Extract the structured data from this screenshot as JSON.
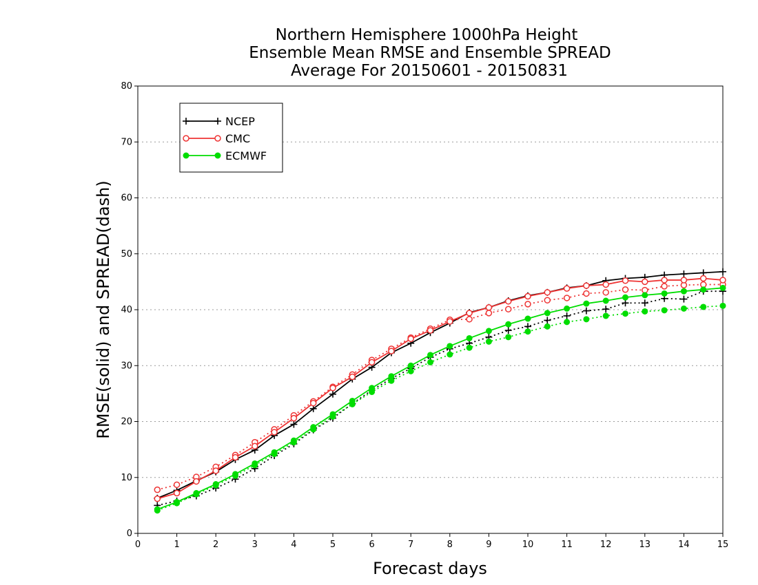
{
  "chart_data": {
    "type": "line",
    "title_lines": [
      "Northern Hemisphere 1000hPa Height",
      "Ensemble Mean RMSE and Ensemble SPREAD",
      "Average For 20150601 - 20150831"
    ],
    "xlabel": "Forecast days",
    "ylabel": "RMSE(solid) and SPREAD(dash)",
    "xlim": [
      0,
      15
    ],
    "ylim": [
      0,
      80
    ],
    "x_ticks": [
      "0",
      "1",
      "2",
      "3",
      "4",
      "5",
      "6",
      "7",
      "8",
      "9",
      "10",
      "11",
      "12",
      "13",
      "14",
      "15"
    ],
    "y_ticks": [
      "0",
      "10",
      "20",
      "30",
      "40",
      "50",
      "60",
      "70",
      "80"
    ],
    "grid": "horizontal dotted",
    "legend_position": "top-left",
    "x": [
      0.5,
      1,
      1.5,
      2,
      2.5,
      3,
      3.5,
      4,
      4.5,
      5,
      5.5,
      6,
      6.5,
      7,
      7.5,
      8,
      8.5,
      9,
      9.5,
      10,
      10.5,
      11,
      11.5,
      12,
      12.5,
      13,
      13.5,
      14,
      14.5,
      15
    ],
    "series": [
      {
        "name": "NCEP",
        "color": "#000000",
        "marker": "plus",
        "rmse": [
          6.3,
          7.7,
          9.4,
          11.0,
          13.2,
          14.9,
          17.5,
          19.5,
          22.3,
          24.9,
          27.6,
          29.7,
          32.3,
          34.0,
          35.9,
          37.6,
          39.5,
          40.4,
          41.6,
          42.5,
          43.1,
          43.9,
          44.3,
          45.2,
          45.6,
          45.8,
          46.2,
          46.4,
          46.6,
          46.8
        ],
        "spread": [
          5.0,
          5.8,
          6.7,
          8.1,
          9.7,
          11.6,
          13.9,
          16.0,
          18.5,
          20.6,
          23.2,
          25.6,
          27.7,
          29.5,
          31.5,
          33.0,
          34.0,
          35.1,
          36.3,
          37.0,
          38.1,
          38.9,
          39.8,
          40.1,
          41.2,
          41.2,
          42.0,
          41.9,
          43.3,
          43.3
        ]
      },
      {
        "name": "CMC",
        "color": "#ee3333",
        "marker": "open-circle",
        "rmse": [
          6.2,
          7.2,
          9.3,
          11.2,
          13.6,
          15.6,
          18.1,
          20.6,
          23.3,
          26.0,
          28.0,
          30.6,
          32.6,
          34.8,
          36.3,
          37.9,
          39.4,
          40.4,
          41.5,
          42.4,
          43.1,
          43.8,
          44.3,
          44.5,
          45.2,
          45.0,
          45.3,
          45.3,
          45.6,
          45.3
        ],
        "spread": [
          7.8,
          8.7,
          10.1,
          11.9,
          14.0,
          16.3,
          18.6,
          21.1,
          23.6,
          26.2,
          28.4,
          31.0,
          33.0,
          35.0,
          36.6,
          38.2,
          38.3,
          39.4,
          40.1,
          41.0,
          41.7,
          42.1,
          42.9,
          43.1,
          43.6,
          43.5,
          44.2,
          44.4,
          44.5,
          44.5
        ]
      },
      {
        "name": "ECMWF",
        "color": "#00dd00",
        "marker": "filled-circle",
        "rmse": [
          4.3,
          5.6,
          7.2,
          8.8,
          10.6,
          12.5,
          14.5,
          16.6,
          19.0,
          21.3,
          23.7,
          26.0,
          28.1,
          30.0,
          31.9,
          33.5,
          34.9,
          36.2,
          37.4,
          38.4,
          39.4,
          40.2,
          41.1,
          41.6,
          42.2,
          42.6,
          42.9,
          43.3,
          43.6,
          43.9
        ],
        "spread": [
          4.1,
          5.4,
          7.0,
          8.6,
          10.3,
          12.2,
          14.2,
          16.3,
          18.6,
          20.9,
          23.1,
          25.3,
          27.3,
          29.0,
          30.6,
          32.0,
          33.2,
          34.3,
          35.1,
          36.1,
          37.0,
          37.8,
          38.3,
          38.9,
          39.3,
          39.7,
          39.9,
          40.2,
          40.5,
          40.7
        ]
      }
    ]
  }
}
